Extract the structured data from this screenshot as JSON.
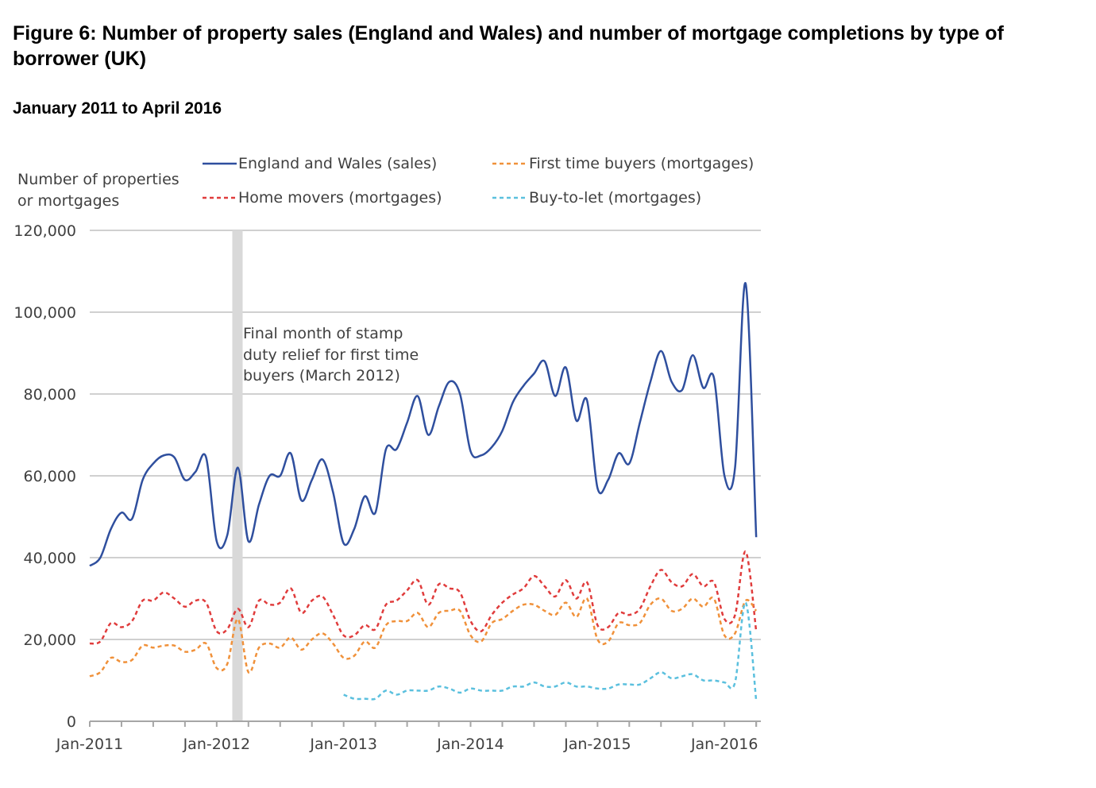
{
  "chart_data": {
    "type": "line",
    "title": "Figure 6: Number of property sales (England and Wales) and number of mortgage completions by type of borrower (UK)",
    "subtitle": "January 2011 to April 2016",
    "ylabel_line1": "Number of properties",
    "ylabel_line2": "or mortgages",
    "xlabel": "",
    "ylim": [
      0,
      120000
    ],
    "yticks": [
      "0",
      "20,000",
      "40,000",
      "60,000",
      "80,000",
      "100,000",
      "120,000"
    ],
    "ytick_values": [
      0,
      20000,
      40000,
      60000,
      80000,
      100000,
      120000
    ],
    "xticks": [
      "Jan-2011",
      "Jan-2012",
      "Jan-2013",
      "Jan-2014",
      "Jan-2015",
      "Jan-2016"
    ],
    "x_start": "Jan-2011",
    "x_end": "Apr-2016",
    "grid": true,
    "legend_position": "top",
    "annotation": {
      "month": "Mar-2012",
      "lines": [
        "Final month of stamp",
        "duty relief for first time",
        "buyers (March 2012)"
      ]
    },
    "series": [
      {
        "name": "England and Wales (sales)",
        "color": "#2f4f9e",
        "dash": false,
        "start": "Jan-2011",
        "values": [
          38000,
          40000,
          47000,
          51000,
          49500,
          59000,
          63000,
          65000,
          64500,
          59000,
          61000,
          64500,
          44000,
          45500,
          62000,
          44000,
          53000,
          60000,
          60000,
          65500,
          54000,
          59000,
          64000,
          56000,
          43500,
          47000,
          55000,
          51000,
          66500,
          66500,
          73000,
          79500,
          70000,
          77000,
          83000,
          80000,
          66000,
          65000,
          67000,
          71000,
          78000,
          82000,
          85000,
          88000,
          79500,
          86500,
          73500,
          78500,
          57000,
          59000,
          65500,
          63000,
          73000,
          83000,
          90500,
          83000,
          81000,
          89500,
          81500,
          84000,
          60000,
          62000,
          107000,
          45000
        ]
      },
      {
        "name": "Home movers (mortgages)",
        "color": "#e03c3c",
        "dash": true,
        "start": "Jan-2011",
        "values": [
          19000,
          19500,
          24000,
          23000,
          24500,
          29500,
          29500,
          31500,
          30000,
          28000,
          29500,
          29000,
          22000,
          22500,
          27500,
          23000,
          29500,
          28500,
          29000,
          32500,
          26500,
          29500,
          30500,
          26000,
          21000,
          21000,
          23500,
          22500,
          28500,
          29500,
          32000,
          34500,
          28500,
          33500,
          32500,
          31500,
          24500,
          22000,
          26000,
          29000,
          31000,
          32500,
          35500,
          33000,
          30500,
          34500,
          30000,
          34000,
          23500,
          23000,
          26500,
          26000,
          27500,
          33000,
          37000,
          34000,
          33000,
          36000,
          33000,
          34000,
          25000,
          26000,
          41500,
          22000
        ]
      },
      {
        "name": "First time buyers (mortgages)",
        "color": "#f0913a",
        "dash": true,
        "start": "Jan-2011",
        "values": [
          11000,
          12000,
          15500,
          14500,
          15000,
          18500,
          18000,
          18500,
          18500,
          17000,
          17500,
          19000,
          13000,
          14000,
          25000,
          12000,
          18000,
          19000,
          18000,
          20500,
          17500,
          20000,
          21500,
          19000,
          15500,
          16000,
          19500,
          18000,
          23500,
          24500,
          24500,
          26500,
          23000,
          26500,
          27000,
          27000,
          21000,
          19500,
          24000,
          25000,
          27000,
          28500,
          28500,
          27000,
          26000,
          29000,
          25500,
          30000,
          20000,
          19500,
          24000,
          23500,
          24000,
          28500,
          30000,
          27000,
          27500,
          30000,
          28000,
          30000,
          21000,
          21500,
          29500,
          27000
        ]
      },
      {
        "name": "Buy-to-let (mortgages)",
        "color": "#5bc0de",
        "dash": true,
        "start": "Jan-2013",
        "values": [
          6500,
          5500,
          5500,
          5500,
          7500,
          6500,
          7500,
          7500,
          7500,
          8500,
          8000,
          7000,
          8000,
          7500,
          7500,
          7500,
          8500,
          8500,
          9500,
          8500,
          8500,
          9500,
          8500,
          8500,
          8000,
          8000,
          9000,
          9000,
          9000,
          10500,
          12000,
          10500,
          11000,
          11500,
          10000,
          10000,
          9500,
          9500,
          29000,
          5000
        ]
      }
    ]
  }
}
